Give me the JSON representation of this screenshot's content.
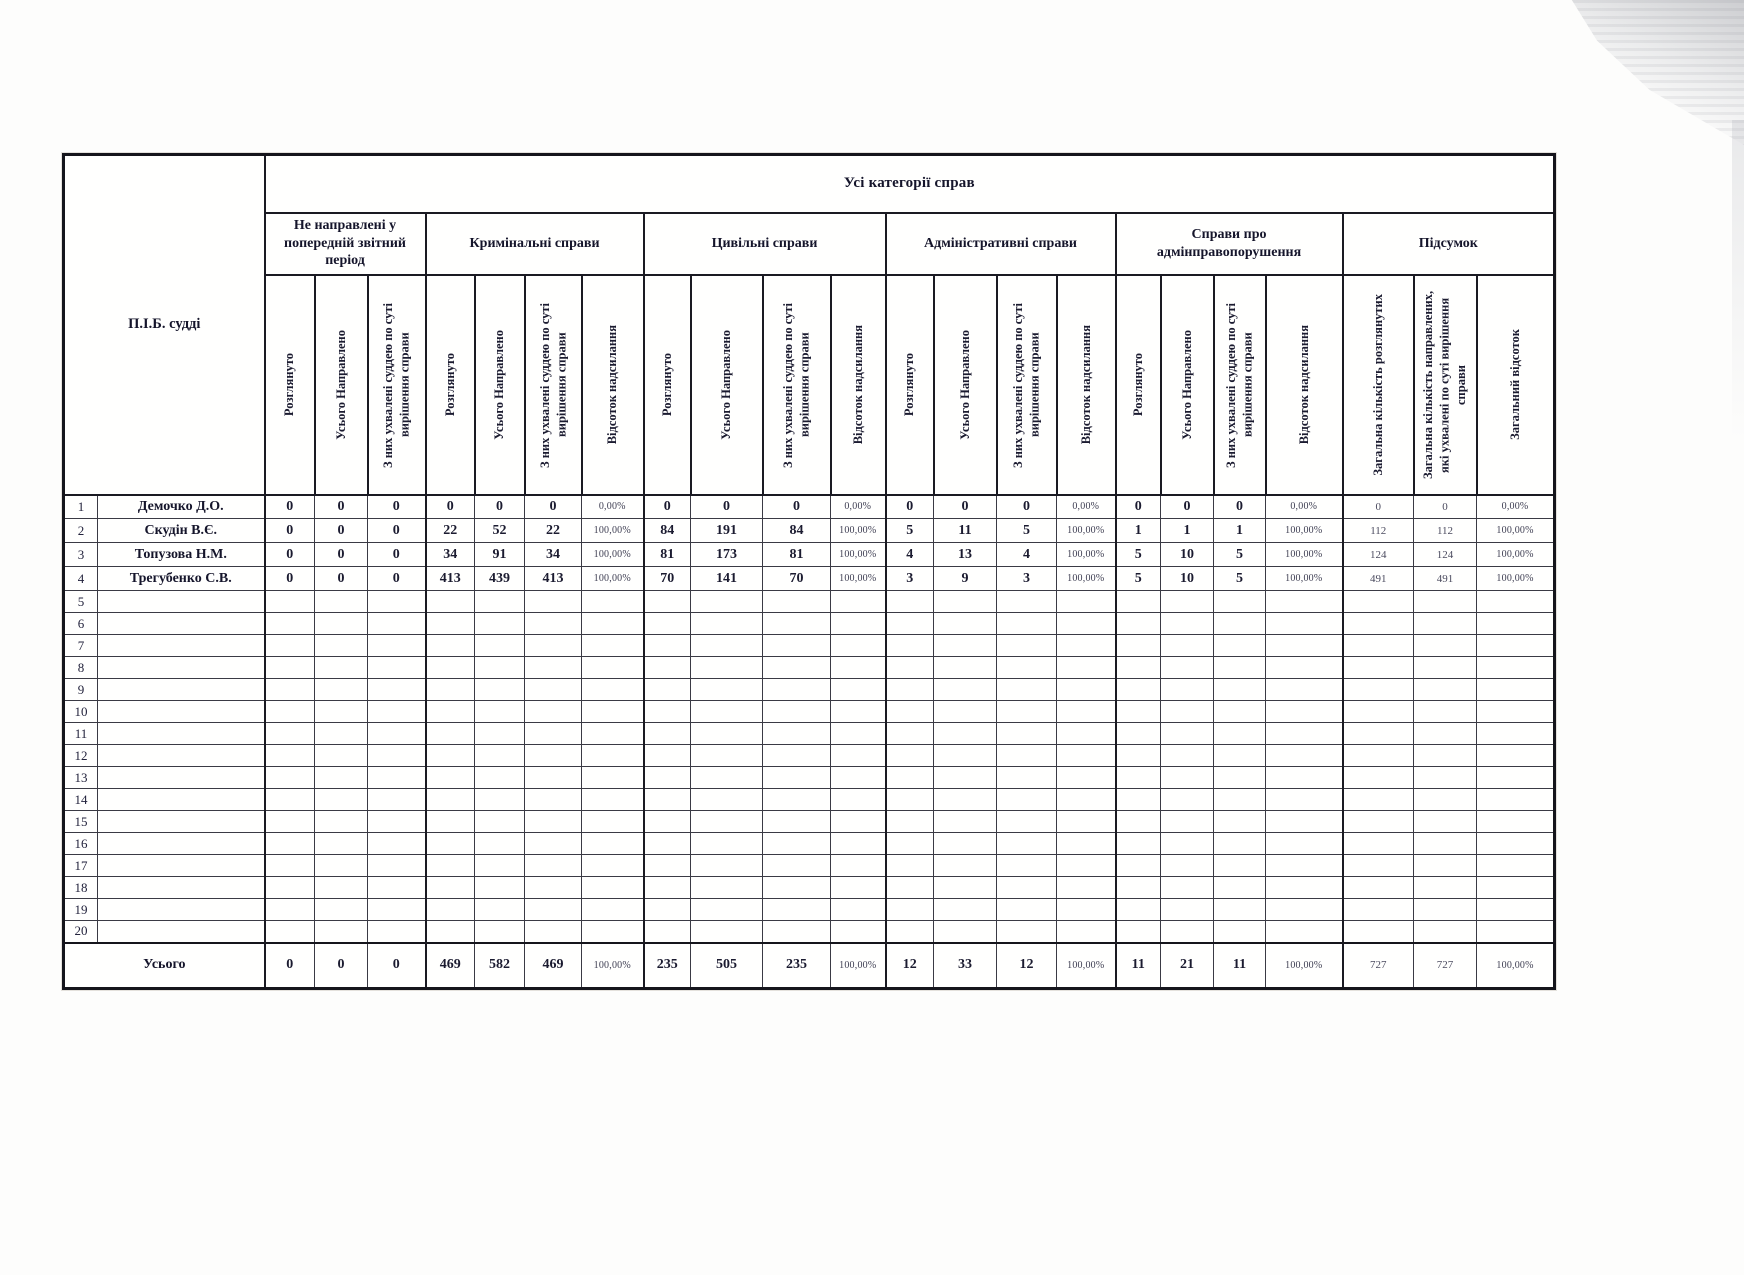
{
  "colors": {
    "ink": "#15152b",
    "light_ink": "#4a4a5e",
    "border": "#1a1a22"
  },
  "report": {
    "banner": "Усі категорії справ",
    "corner_header": "П.І.Б. судді",
    "total_label": "Усього",
    "groups": [
      {
        "label": "Не направлені у попередній звітний період",
        "cols": [
          "Розглянуто",
          "Усього Направлено",
          "З них ухвалені суддею по суті вирішення справи"
        ]
      },
      {
        "label": "Кримінальні справи",
        "cols": [
          "Розглянуто",
          "Усього Направлено",
          "З них ухвалені суддею по суті вирішення справи",
          "Відсоток надсилання"
        ]
      },
      {
        "label": "Цивільні справи",
        "cols": [
          "Розглянуто",
          "Усього Направлено",
          "З них ухвалені суддею по суті вирішення справи",
          "Відсоток надсилання"
        ]
      },
      {
        "label": "Адміністративні справи",
        "cols": [
          "Розглянуто",
          "Усього Направлено",
          "З них ухвалені суддею по суті вирішення справи",
          "Відсоток надсилання"
        ]
      },
      {
        "label": "Справи про адмінправопорушення",
        "cols": [
          "Розглянуто",
          "Усього Направлено",
          "З них ухвалені суддею по суті вирішення справи",
          "Відсоток надсилання"
        ]
      },
      {
        "label": "Підсумок",
        "cols": [
          "Загальна кількість розглянутих",
          "Загальна кількість направлених, які ухвалені по суті вирішення справи",
          "Загальний відсоток"
        ]
      }
    ],
    "rows": [
      {
        "num": "1",
        "name": "Демочко Д.О.",
        "values": [
          "0",
          "0",
          "0",
          "0",
          "0",
          "0",
          "0,00%",
          "0",
          "0",
          "0",
          "0,00%",
          "0",
          "0",
          "0",
          "0,00%",
          "0",
          "0",
          "0",
          "0,00%",
          "0",
          "0",
          "0,00%"
        ]
      },
      {
        "num": "2",
        "name": "Скудін В.Є.",
        "values": [
          "0",
          "0",
          "0",
          "22",
          "52",
          "22",
          "100,00%",
          "84",
          "191",
          "84",
          "100,00%",
          "5",
          "11",
          "5",
          "100,00%",
          "1",
          "1",
          "1",
          "100,00%",
          "112",
          "112",
          "100,00%"
        ]
      },
      {
        "num": "3",
        "name": "Топузова Н.М.",
        "values": [
          "0",
          "0",
          "0",
          "34",
          "91",
          "34",
          "100,00%",
          "81",
          "173",
          "81",
          "100,00%",
          "4",
          "13",
          "4",
          "100,00%",
          "5",
          "10",
          "5",
          "100,00%",
          "124",
          "124",
          "100,00%"
        ]
      },
      {
        "num": "4",
        "name": "Трегубенко С.В.",
        "values": [
          "0",
          "0",
          "0",
          "413",
          "439",
          "413",
          "100,00%",
          "70",
          "141",
          "70",
          "100,00%",
          "3",
          "9",
          "3",
          "100,00%",
          "5",
          "10",
          "5",
          "100,00%",
          "491",
          "491",
          "100,00%"
        ]
      },
      {
        "num": "5",
        "name": "",
        "values": []
      },
      {
        "num": "6",
        "name": "",
        "values": []
      },
      {
        "num": "7",
        "name": "",
        "values": []
      },
      {
        "num": "8",
        "name": "",
        "values": []
      },
      {
        "num": "9",
        "name": "",
        "values": []
      },
      {
        "num": "10",
        "name": "",
        "values": []
      },
      {
        "num": "11",
        "name": "",
        "values": []
      },
      {
        "num": "12",
        "name": "",
        "values": []
      },
      {
        "num": "13",
        "name": "",
        "values": []
      },
      {
        "num": "14",
        "name": "",
        "values": []
      },
      {
        "num": "15",
        "name": "",
        "values": []
      },
      {
        "num": "16",
        "name": "",
        "values": []
      },
      {
        "num": "17",
        "name": "",
        "values": []
      },
      {
        "num": "18",
        "name": "",
        "values": []
      },
      {
        "num": "19",
        "name": "",
        "values": []
      },
      {
        "num": "20",
        "name": "",
        "values": []
      }
    ],
    "total": {
      "values": [
        "0",
        "0",
        "0",
        "469",
        "582",
        "469",
        "100,00%",
        "235",
        "505",
        "235",
        "100,00%",
        "12",
        "33",
        "12",
        "100,00%",
        "11",
        "21",
        "11",
        "100,00%",
        "727",
        "727",
        "100,00%"
      ]
    }
  }
}
